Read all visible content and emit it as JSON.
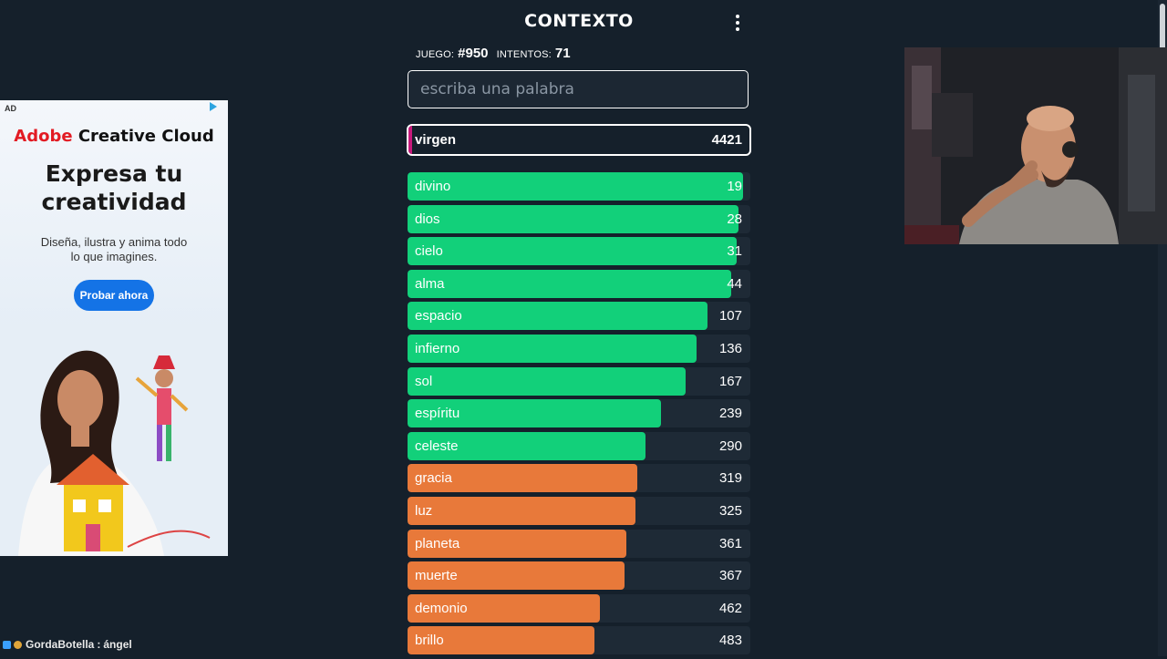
{
  "header": {
    "title": "CONTEXTO"
  },
  "stats": {
    "game_label": "JUEGO:",
    "game_value": "#950",
    "attempts_label": "INTENTOS:",
    "attempts_value": "71"
  },
  "search": {
    "placeholder": "escriba una palabra",
    "value": ""
  },
  "current_guess": {
    "word": "virgen",
    "rank": "4421",
    "bar_fraction": 0.01,
    "color": "#c7197b"
  },
  "colors": {
    "green": "#12d07a",
    "orange": "#e8793a",
    "pink": "#c7197b",
    "background": "#15202b",
    "track": "#1e2a36"
  },
  "guesses": [
    {
      "word": "divino",
      "rank": "19",
      "fill": 0.978,
      "color": "#12d07a"
    },
    {
      "word": "dios",
      "rank": "28",
      "fill": 0.965,
      "color": "#12d07a"
    },
    {
      "word": "cielo",
      "rank": "31",
      "fill": 0.96,
      "color": "#12d07a"
    },
    {
      "word": "alma",
      "rank": "44",
      "fill": 0.945,
      "color": "#12d07a"
    },
    {
      "word": "espacio",
      "rank": "107",
      "fill": 0.875,
      "color": "#12d07a"
    },
    {
      "word": "infierno",
      "rank": "136",
      "fill": 0.843,
      "color": "#12d07a"
    },
    {
      "word": "sol",
      "rank": "167",
      "fill": 0.81,
      "color": "#12d07a"
    },
    {
      "word": "espíritu",
      "rank": "239",
      "fill": 0.74,
      "color": "#12d07a"
    },
    {
      "word": "celeste",
      "rank": "290",
      "fill": 0.695,
      "color": "#12d07a"
    },
    {
      "word": "gracia",
      "rank": "319",
      "fill": 0.67,
      "color": "#e8793a"
    },
    {
      "word": "luz",
      "rank": "325",
      "fill": 0.665,
      "color": "#e8793a"
    },
    {
      "word": "planeta",
      "rank": "361",
      "fill": 0.637,
      "color": "#e8793a"
    },
    {
      "word": "muerte",
      "rank": "367",
      "fill": 0.632,
      "color": "#e8793a"
    },
    {
      "word": "demonio",
      "rank": "462",
      "fill": 0.56,
      "color": "#e8793a"
    },
    {
      "word": "brillo",
      "rank": "483",
      "fill": 0.546,
      "color": "#e8793a"
    }
  ],
  "ad": {
    "tag": "AD",
    "brand_a": "Adobe",
    "brand_b": " Creative Cloud",
    "headline_1": "Expresa tu",
    "headline_2": "creatividad",
    "subtitle_1": "Diseña, ilustra y anima todo",
    "subtitle_2": "lo que imagines.",
    "cta": "Probar ahora"
  },
  "chat": {
    "user": "GordaBotella",
    "separator": ":",
    "message": "ángel"
  }
}
